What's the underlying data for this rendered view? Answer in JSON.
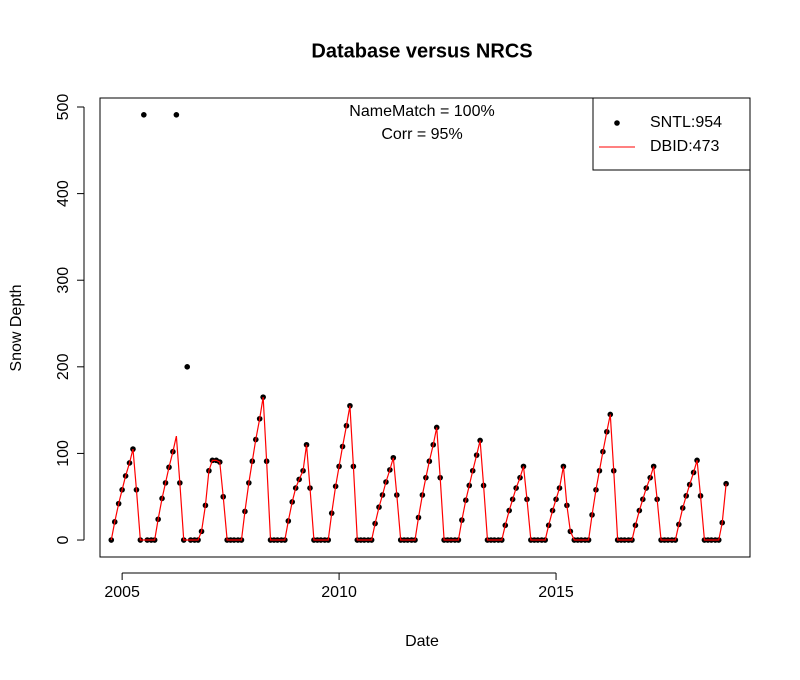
{
  "chart_data": {
    "type": "line",
    "title": "Database versus NRCS",
    "x_label": "Date",
    "y_label": "Snow Depth",
    "annotations": [
      "NameMatch = 100%",
      "Corr = 95%"
    ],
    "x": [
      2004.75,
      2004.83,
      2004.92,
      2005,
      2005.08,
      2005.17,
      2005.25,
      2005.33,
      2005.42,
      2005.5,
      2005.58,
      2005.67,
      2005.75,
      2005.83,
      2005.92,
      2006,
      2006.08,
      2006.17,
      2006.25,
      2006.33,
      2006.42,
      2006.5,
      2006.58,
      2006.67,
      2006.75,
      2006.83,
      2006.92,
      2007,
      2007.08,
      2007.17,
      2007.25,
      2007.33,
      2007.42,
      2007.5,
      2007.58,
      2007.67,
      2007.75,
      2007.83,
      2007.92,
      2008,
      2008.08,
      2008.17,
      2008.25,
      2008.33,
      2008.42,
      2008.5,
      2008.58,
      2008.67,
      2008.75,
      2008.83,
      2008.92,
      2009,
      2009.08,
      2009.17,
      2009.25,
      2009.33,
      2009.42,
      2009.5,
      2009.58,
      2009.67,
      2009.75,
      2009.83,
      2009.92,
      2010,
      2010.08,
      2010.17,
      2010.25,
      2010.33,
      2010.42,
      2010.5,
      2010.58,
      2010.67,
      2010.75,
      2010.83,
      2010.92,
      2011,
      2011.08,
      2011.17,
      2011.25,
      2011.33,
      2011.42,
      2011.5,
      2011.58,
      2011.67,
      2011.75,
      2011.83,
      2011.92,
      2012,
      2012.08,
      2012.17,
      2012.25,
      2012.33,
      2012.42,
      2012.5,
      2012.58,
      2012.67,
      2012.75,
      2012.83,
      2012.92,
      2013,
      2013.08,
      2013.17,
      2013.25,
      2013.33,
      2013.42,
      2013.5,
      2013.58,
      2013.67,
      2013.75,
      2013.83,
      2013.92,
      2014,
      2014.08,
      2014.17,
      2014.25,
      2014.33,
      2014.42,
      2014.5,
      2014.58,
      2014.67,
      2014.75,
      2014.83,
      2014.92,
      2015,
      2015.08,
      2015.17,
      2015.25,
      2015.33,
      2015.42,
      2015.5,
      2015.58,
      2015.67,
      2015.75,
      2015.83,
      2015.92,
      2016,
      2016.08,
      2016.17,
      2016.25,
      2016.33,
      2016.42,
      2016.5,
      2016.58,
      2016.67,
      2016.75,
      2016.83,
      2016.92,
      2017,
      2017.08,
      2017.17,
      2017.25,
      2017.33,
      2017.42,
      2017.5,
      2017.58,
      2017.67,
      2017.75,
      2017.83,
      2017.92,
      2018,
      2018.08,
      2018.17,
      2018.25,
      2018.33,
      2018.42,
      2018.5,
      2018.58,
      2018.67,
      2018.75,
      2018.83,
      2018.92
    ],
    "series": [
      {
        "name": "SNTL:954",
        "type": "scatter",
        "color": "#000000",
        "values": [
          0,
          21,
          42,
          58,
          74,
          89,
          105,
          58,
          0,
          491,
          0,
          0,
          0,
          24,
          48,
          66,
          84,
          102,
          491,
          66,
          0,
          200,
          0,
          0,
          0,
          10,
          40,
          80,
          92,
          92,
          90,
          50,
          0,
          0,
          0,
          0,
          0,
          33,
          66,
          91,
          116,
          140,
          165,
          91,
          0,
          0,
          0,
          0,
          0,
          22,
          44,
          60,
          70,
          80,
          110,
          60,
          0,
          0,
          0,
          0,
          0,
          31,
          62,
          85,
          108,
          132,
          155,
          85,
          0,
          0,
          0,
          0,
          0,
          19,
          38,
          52,
          67,
          81,
          95,
          52,
          0,
          0,
          0,
          0,
          0,
          26,
          52,
          72,
          91,
          110,
          130,
          72,
          0,
          0,
          0,
          0,
          0,
          23,
          46,
          63,
          80,
          98,
          115,
          63,
          0,
          0,
          0,
          0,
          0,
          17,
          34,
          47,
          60,
          72,
          85,
          47,
          0,
          0,
          0,
          0,
          0,
          17,
          34,
          47,
          60,
          85,
          40,
          10,
          0,
          0,
          0,
          0,
          0,
          29,
          58,
          80,
          102,
          125,
          145,
          80,
          0,
          0,
          0,
          0,
          0,
          17,
          34,
          47,
          60,
          72,
          85,
          47,
          0,
          0,
          0,
          0,
          0,
          18,
          37,
          51,
          64,
          78,
          92,
          51,
          0,
          0,
          0,
          0,
          0,
          20,
          65
        ]
      },
      {
        "name": "DBID:473",
        "type": "line",
        "color": "#ff0000",
        "values": [
          0,
          21,
          42,
          58,
          74,
          89,
          105,
          58,
          0,
          0,
          0,
          0,
          0,
          24,
          48,
          66,
          84,
          102,
          120,
          66,
          0,
          0,
          0,
          0,
          0,
          10,
          40,
          80,
          92,
          92,
          90,
          50,
          0,
          0,
          0,
          0,
          0,
          33,
          66,
          91,
          116,
          140,
          165,
          91,
          0,
          0,
          0,
          0,
          0,
          22,
          44,
          60,
          70,
          80,
          110,
          60,
          0,
          0,
          0,
          0,
          0,
          31,
          62,
          85,
          108,
          132,
          155,
          85,
          0,
          0,
          0,
          0,
          0,
          19,
          38,
          52,
          67,
          81,
          95,
          52,
          0,
          0,
          0,
          0,
          0,
          26,
          52,
          72,
          91,
          110,
          130,
          72,
          0,
          0,
          0,
          0,
          0,
          23,
          46,
          63,
          80,
          98,
          115,
          63,
          0,
          0,
          0,
          0,
          0,
          17,
          34,
          47,
          60,
          72,
          85,
          47,
          0,
          0,
          0,
          0,
          0,
          17,
          34,
          47,
          60,
          85,
          40,
          10,
          0,
          0,
          0,
          0,
          0,
          29,
          58,
          80,
          102,
          125,
          145,
          80,
          0,
          0,
          0,
          0,
          0,
          17,
          34,
          47,
          60,
          72,
          85,
          47,
          0,
          0,
          0,
          0,
          0,
          18,
          37,
          51,
          64,
          78,
          92,
          51,
          0,
          0,
          0,
          0,
          0,
          20,
          65
        ]
      }
    ],
    "xlim": [
      2004.49,
      2019.47
    ],
    "xticks": [
      2005,
      2010,
      2015
    ],
    "ylim": [
      -19.6,
      510.4
    ],
    "yticks": [
      0,
      100,
      200,
      300,
      400,
      500
    ],
    "legend": "top-right"
  }
}
